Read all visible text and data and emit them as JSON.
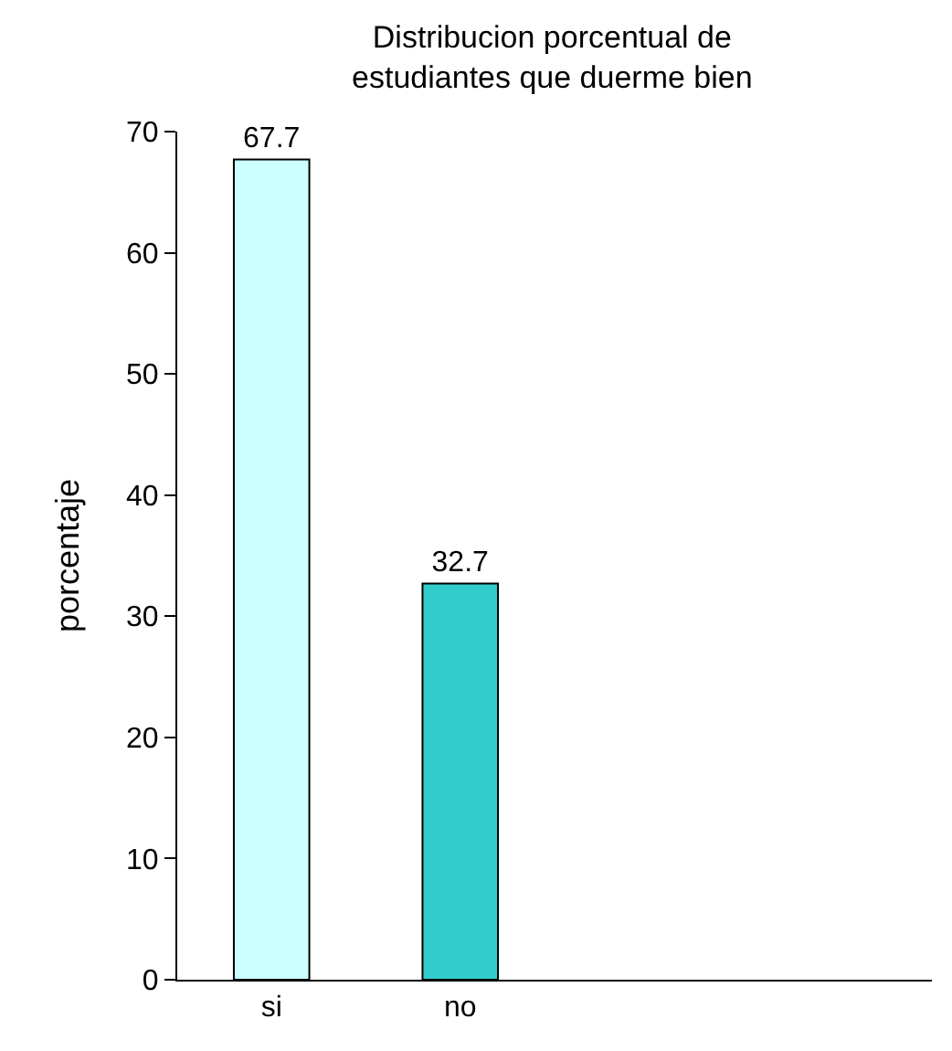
{
  "chart_data": {
    "type": "bar",
    "title": "Distribucion porcentual de\nestudiantes que duerme bien",
    "ylabel": "porcentaje",
    "categories": [
      "si",
      "no",
      null,
      null
    ],
    "values": [
      67.7,
      32.7,
      null,
      null
    ],
    "colors": [
      "#ccffff",
      "#33cccc",
      "#33cccc",
      "#33cccc"
    ],
    "ylim": [
      0,
      70
    ],
    "yticks": [
      0,
      10,
      20,
      30,
      40,
      50,
      60,
      70
    ],
    "data_labels": true
  }
}
